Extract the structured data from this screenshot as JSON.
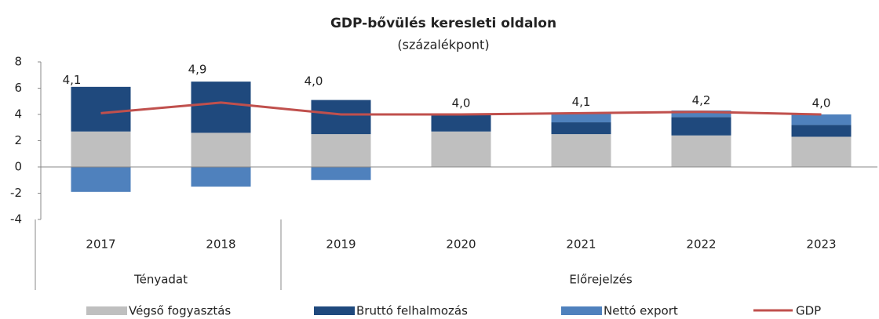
{
  "chart_data": {
    "type": "bar",
    "title": "GDP-bővülés keresleti oldalon",
    "subtitle": "(százalékpont)",
    "categories": [
      "2017",
      "2018",
      "2019",
      "2020",
      "2021",
      "2022",
      "2023"
    ],
    "groups": [
      {
        "label": "Tényadat",
        "count": 2
      },
      {
        "label": "Előrejelzés",
        "count": 5
      }
    ],
    "series": [
      {
        "name": "Végső fogyasztás",
        "color": "#bfbfbf",
        "values": [
          2.7,
          2.6,
          2.5,
          2.7,
          2.5,
          2.4,
          2.3
        ]
      },
      {
        "name": "Bruttó felhalmozás",
        "color": "#1f497d",
        "values": [
          3.4,
          3.9,
          2.6,
          1.3,
          0.9,
          1.4,
          0.9
        ]
      },
      {
        "name": "Nettó export",
        "color": "#4f81bd",
        "values": [
          -1.9,
          -1.5,
          -1.0,
          0,
          0.7,
          0.5,
          0.8
        ]
      },
      {
        "name": "GDP",
        "color": "#c0504d",
        "type": "line",
        "values": [
          4.1,
          4.9,
          4.0,
          4.0,
          4.1,
          4.2,
          4.0
        ],
        "value_labels": [
          "4,1",
          "4,9",
          "4,0",
          "4,0",
          "4,1",
          "4,2",
          "4,0"
        ]
      }
    ],
    "ylim": [
      -4,
      8
    ],
    "yticks": [
      -4,
      -2,
      0,
      2,
      4,
      6,
      8
    ],
    "stacked": true
  }
}
